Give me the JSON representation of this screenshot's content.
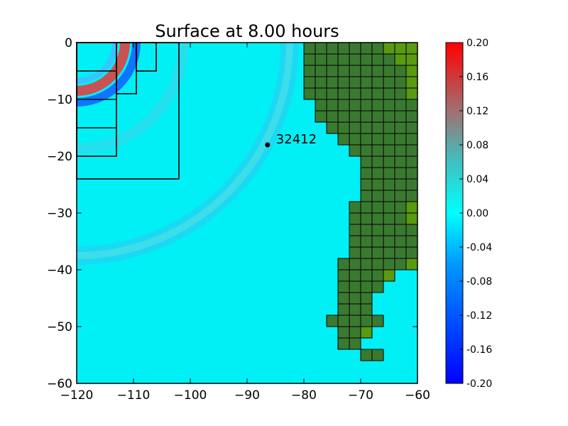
{
  "chart_data": {
    "type": "heatmap",
    "title": "Surface at 8.00 hours",
    "xlim": [
      -120,
      -60
    ],
    "ylim": [
      -60,
      0
    ],
    "x_ticks": [
      "−120",
      "−110",
      "−100",
      "−90",
      "−80",
      "−70",
      "−60"
    ],
    "y_ticks": [
      "0",
      "−10",
      "−20",
      "−30",
      "−40",
      "−50",
      "−60"
    ],
    "colorbar": {
      "range": [
        -0.2,
        0.2
      ],
      "ticks": [
        "0.20",
        "0.16",
        "0.12",
        "0.08",
        "0.04",
        "0.00",
        "-0.04",
        "-0.08",
        "-0.12",
        "-0.16",
        "-0.20"
      ],
      "colors": [
        "#0000ff",
        "#00ffff",
        "#ff0000"
      ]
    },
    "gauge": {
      "label": "32412",
      "x": -86.4,
      "y": -18.0
    },
    "land_color": "#3a7a30",
    "land_color_high": "#5a9a10",
    "refinement_patches": [
      {
        "x0": -120,
        "x1": -102,
        "y0": -24,
        "y1": 0
      },
      {
        "x0": -120,
        "x1": -113,
        "y0": -20,
        "y1": 0
      },
      {
        "x0": -113,
        "x1": -109.5,
        "y0": -9,
        "y1": 0
      },
      {
        "x0": -109.5,
        "x1": -106,
        "y0": -5,
        "y1": 0
      }
    ],
    "land_rows": [
      {
        "y0": -2,
        "y1": 0,
        "x0": -80,
        "x1": -60
      },
      {
        "y0": -4,
        "y1": -2,
        "x0": -80,
        "x1": -60
      },
      {
        "y0": -6,
        "y1": -4,
        "x0": -80,
        "x1": -60
      },
      {
        "y0": -8,
        "y1": -6,
        "x0": -80,
        "x1": -60
      },
      {
        "y0": -10,
        "y1": -8,
        "x0": -80,
        "x1": -60
      },
      {
        "y0": -12,
        "y1": -10,
        "x0": -78,
        "x1": -60
      },
      {
        "y0": -14,
        "y1": -12,
        "x0": -78,
        "x1": -60
      },
      {
        "y0": -16,
        "y1": -14,
        "x0": -76,
        "x1": -60
      },
      {
        "y0": -18,
        "y1": -16,
        "x0": -74,
        "x1": -60
      },
      {
        "y0": -20,
        "y1": -18,
        "x0": -72,
        "x1": -60
      },
      {
        "y0": -22,
        "y1": -20,
        "x0": -70,
        "x1": -60
      },
      {
        "y0": -24,
        "y1": -22,
        "x0": -70,
        "x1": -60
      },
      {
        "y0": -26,
        "y1": -24,
        "x0": -70,
        "x1": -60
      },
      {
        "y0": -28,
        "y1": -26,
        "x0": -70,
        "x1": -60
      },
      {
        "y0": -30,
        "y1": -28,
        "x0": -72,
        "x1": -60
      },
      {
        "y0": -32,
        "y1": -30,
        "x0": -72,
        "x1": -60
      },
      {
        "y0": -34,
        "y1": -32,
        "x0": -72,
        "x1": -60
      },
      {
        "y0": -36,
        "y1": -34,
        "x0": -72,
        "x1": -60
      },
      {
        "y0": -38,
        "y1": -36,
        "x0": -72,
        "x1": -60
      },
      {
        "y0": -40,
        "y1": -38,
        "x0": -74,
        "x1": -60
      },
      {
        "y0": -42,
        "y1": -40,
        "x0": -74,
        "x1": -64
      },
      {
        "y0": -44,
        "y1": -42,
        "x0": -74,
        "x1": -66
      },
      {
        "y0": -46,
        "y1": -44,
        "x0": -74,
        "x1": -68
      },
      {
        "y0": -48,
        "y1": -46,
        "x0": -74,
        "x1": -68
      },
      {
        "y0": -50,
        "y1": -48,
        "x0": -76,
        "x1": -66
      },
      {
        "y0": -52,
        "y1": -50,
        "x0": -74,
        "x1": -68
      },
      {
        "y0": -54,
        "y1": -52,
        "x0": -74,
        "x1": -70
      },
      {
        "y0": -56,
        "y1": -54,
        "x0": -70,
        "x1": -66
      }
    ],
    "land_high_cells": [
      [
        -64,
        -2
      ],
      [
        -62,
        -2
      ],
      [
        -66,
        -2
      ],
      [
        -64,
        -4
      ],
      [
        -62,
        -4
      ],
      [
        -62,
        -6
      ],
      [
        -62,
        -8
      ],
      [
        -62,
        -10
      ],
      [
        -62,
        -30
      ],
      [
        -62,
        -32
      ],
      [
        -62,
        -40
      ],
      [
        -66,
        -42
      ],
      [
        -68,
        -48
      ],
      [
        -70,
        -52
      ]
    ]
  }
}
